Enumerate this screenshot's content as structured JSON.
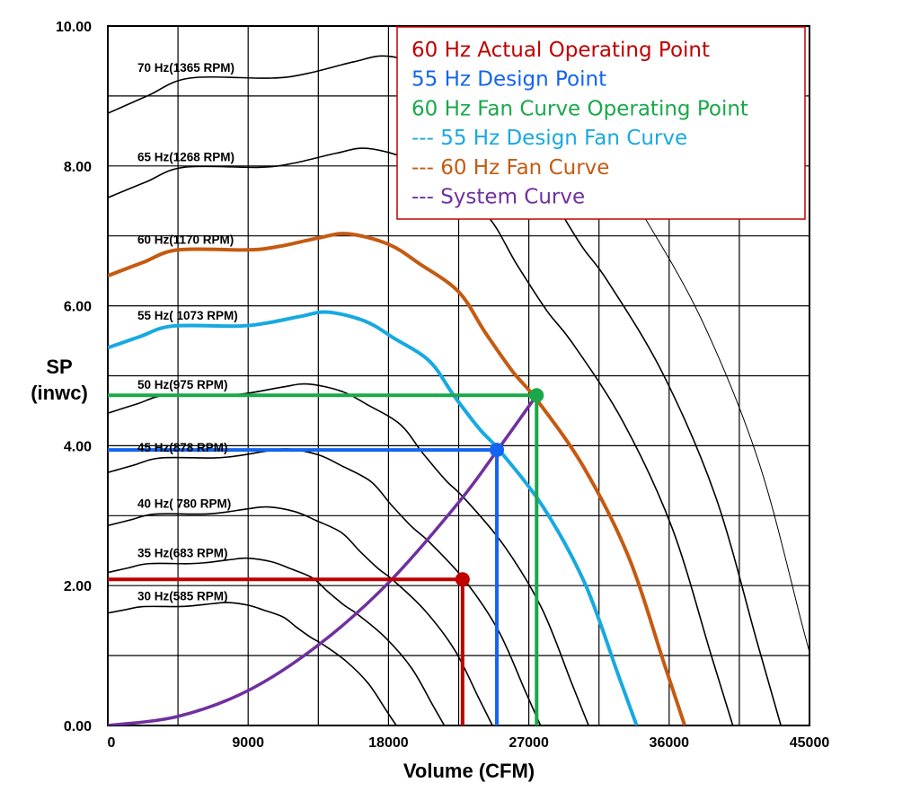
{
  "chart_data": {
    "type": "line",
    "xlabel": "Volume (CFM)",
    "ylabel": "SP\n(inwc)",
    "ylabel_lines": [
      "SP",
      "(inwc)"
    ],
    "xlim": [
      0,
      45000
    ],
    "ylim": [
      0,
      10
    ],
    "x_ticks": [
      "0",
      "9000",
      "18000",
      "27000",
      "36000",
      "45000"
    ],
    "y_ticks": [
      "0.00",
      "2.00",
      "4.00",
      "6.00",
      "8.00",
      "10.00"
    ],
    "grid": true,
    "grid_x_step": 4500,
    "grid_y_step": 1,
    "legend_position": "top-right",
    "legend": [
      {
        "text": "60 Hz Actual Operating Point",
        "color": "#c00000"
      },
      {
        "text": "55 Hz Design Point",
        "color": "#1464f0"
      },
      {
        "text": "60 Hz Fan Curve Operating Point",
        "color": "#1aa84a"
      },
      {
        "text": "--- 55 Hz Design Fan Curve",
        "color": "#17a9e1"
      },
      {
        "text": "--- 60 Hz Fan Curve",
        "color": "#c55a11"
      },
      {
        "text": "--- System Curve",
        "color": "#7030a0"
      }
    ],
    "fan_curve_60hz": [
      [
        0,
        6.43
      ],
      [
        2250,
        6.62
      ],
      [
        4500,
        6.8
      ],
      [
        9000,
        6.8
      ],
      [
        11000,
        6.85
      ],
      [
        13500,
        6.97
      ],
      [
        15400,
        7.03
      ],
      [
        18000,
        6.88
      ],
      [
        20000,
        6.6
      ],
      [
        22500,
        6.2
      ],
      [
        24200,
        5.62
      ],
      [
        26000,
        5.05
      ],
      [
        27500,
        4.66
      ],
      [
        30500,
        3.7
      ],
      [
        33400,
        2.41
      ],
      [
        35700,
        0.87
      ],
      [
        37000,
        0
      ]
    ],
    "fan_curve_55hz": [
      [
        0,
        5.4
      ],
      [
        2063,
        5.56
      ],
      [
        4125,
        5.71
      ],
      [
        8250,
        5.71
      ],
      [
        10083,
        5.75
      ],
      [
        12375,
        5.85
      ],
      [
        14117,
        5.91
      ],
      [
        16500,
        5.78
      ],
      [
        18333,
        5.54
      ],
      [
        20625,
        5.21
      ],
      [
        22183,
        4.72
      ],
      [
        23833,
        4.24
      ],
      [
        25208,
        3.91
      ],
      [
        27958,
        3.11
      ],
      [
        30617,
        2.02
      ],
      [
        32725,
        0.73
      ],
      [
        33917,
        0
      ]
    ],
    "system_curve": [
      [
        0,
        0
      ],
      [
        4500,
        0.13
      ],
      [
        9000,
        0.5
      ],
      [
        13500,
        1.15
      ],
      [
        18000,
        2.04
      ],
      [
        22500,
        3.19
      ],
      [
        25000,
        3.94
      ],
      [
        27500,
        4.72
      ]
    ],
    "speed_curves": [
      {
        "hz": 30,
        "label": "30 Hz(585 RPM)"
      },
      {
        "hz": 35,
        "label": "35 Hz(683 RPM)"
      },
      {
        "hz": 40,
        "label": "40 Hz( 780 RPM)"
      },
      {
        "hz": 45,
        "label": "45 Hz(878 RPM)"
      },
      {
        "hz": 50,
        "label": "50 Hz(975 RPM)"
      },
      {
        "hz": 55,
        "label": "55 Hz( 1073 RPM)"
      },
      {
        "hz": 60,
        "label": "60 Hz(1170 RPM)"
      },
      {
        "hz": 65,
        "label": "65 Hz(1268 RPM)"
      },
      {
        "hz": 70,
        "label": "70 Hz(1365 RPM)"
      },
      {
        "hz": 75,
        "label": ""
      }
    ],
    "points": [
      {
        "name": "60 Hz Actual Operating Point",
        "x": 22750,
        "y": 2.09,
        "color": "#c00000"
      },
      {
        "name": "55 Hz Design Point",
        "x": 24950,
        "y": 3.94,
        "color": "#1464f0"
      },
      {
        "name": "60 Hz Fan Curve Operating Point",
        "x": 27500,
        "y": 4.72,
        "color": "#1aa84a"
      }
    ],
    "colors": {
      "fan60": "#c55a11",
      "fan55": "#17a9e1",
      "system": "#7030a0",
      "grid": "#000000"
    }
  }
}
